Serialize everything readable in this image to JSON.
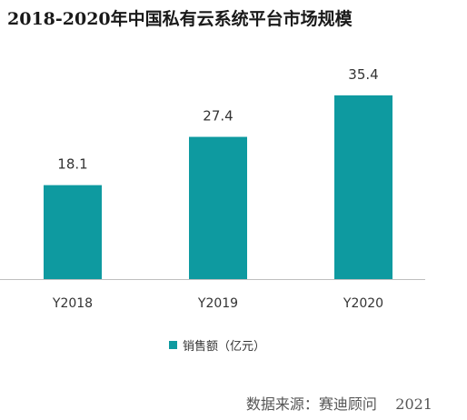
{
  "title": "2018-2020年中国私有云系统平台市场规模",
  "source": "数据来源：赛迪顾问    2021",
  "colors": {
    "bar": "#0e9aa0",
    "axis": "#bfbfbf",
    "label": "#333333"
  },
  "chart_data": {
    "type": "bar",
    "categories": [
      "Y2018",
      "Y2019",
      "Y2020"
    ],
    "series": [
      {
        "name": "销售额（亿元）",
        "values": [
          18.1,
          27.4,
          35.4
        ]
      }
    ],
    "ylim": [
      0,
      40
    ],
    "grid": false,
    "legend_position": "bottom",
    "data_labels": true
  }
}
